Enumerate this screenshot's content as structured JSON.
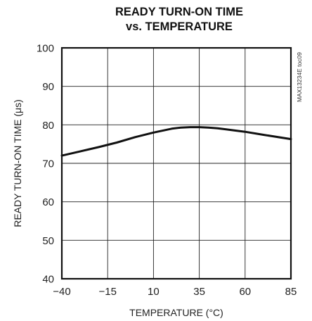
{
  "chart_data": {
    "type": "line",
    "title": "READY TURN-ON TIME",
    "subtitle": "vs. TEMPERATURE",
    "xlabel": "TEMPERATURE (°C)",
    "ylabel": "READY TURN-ON TIME (μs)",
    "xlim": [
      -40,
      85
    ],
    "ylim": [
      40,
      100
    ],
    "x_ticks": [
      -40,
      -15,
      10,
      35,
      60,
      85
    ],
    "y_ticks": [
      40,
      50,
      60,
      70,
      80,
      90,
      100
    ],
    "grid": true,
    "watermark": "MAX13234E toc09",
    "series": [
      {
        "x": [
          -40,
          -30,
          -20,
          -10,
          0,
          10,
          20,
          25,
          30,
          35,
          40,
          45,
          50,
          60,
          70,
          85
        ],
        "y": [
          72.0,
          73.1,
          74.2,
          75.4,
          76.8,
          78.0,
          79.0,
          79.3,
          79.4,
          79.4,
          79.3,
          79.1,
          78.8,
          78.2,
          77.4,
          76.3
        ]
      }
    ]
  }
}
